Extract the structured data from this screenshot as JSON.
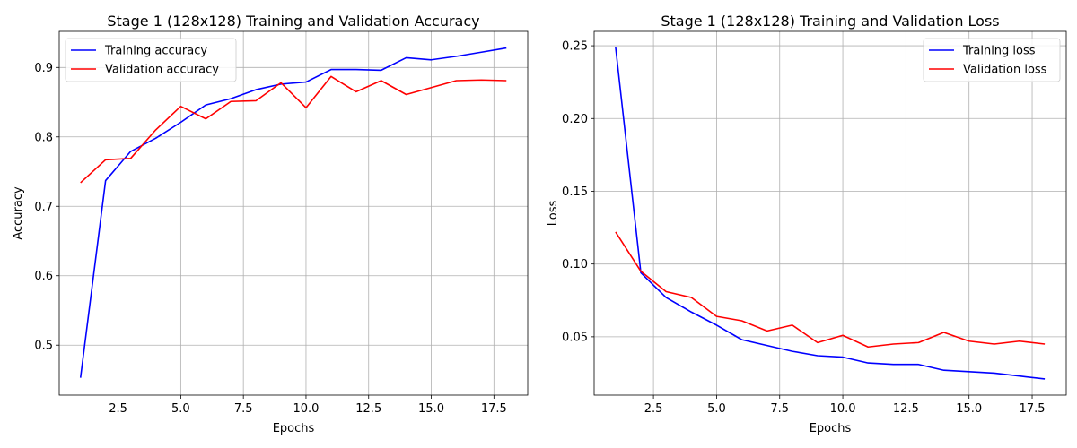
{
  "chart_data": [
    {
      "type": "line",
      "title": "Stage 1 (128x128) Training and Validation Accuracy",
      "xlabel": "Epochs",
      "ylabel": "Accuracy",
      "xlim": [
        0.15,
        18.85
      ],
      "ylim": [
        0.428,
        0.952
      ],
      "xticks": [
        2.5,
        5.0,
        7.5,
        10.0,
        12.5,
        15.0,
        17.5
      ],
      "yticks": [
        0.5,
        0.6,
        0.7,
        0.8,
        0.9
      ],
      "xtick_labels": [
        "2.5",
        "5.0",
        "7.5",
        "10.0",
        "12.5",
        "15.0",
        "17.5"
      ],
      "ytick_labels": [
        "0.5",
        "0.6",
        "0.7",
        "0.8",
        "0.9"
      ],
      "grid": true,
      "legend_position": "top-left",
      "x": [
        1,
        2,
        3,
        4,
        5,
        6,
        7,
        8,
        9,
        10,
        11,
        12,
        13,
        14,
        15,
        16,
        17,
        18
      ],
      "series": [
        {
          "name": "Training accuracy",
          "color": "#0000ff",
          "values": [
            0.453,
            0.737,
            0.779,
            0.798,
            0.821,
            0.846,
            0.855,
            0.868,
            0.876,
            0.879,
            0.897,
            0.897,
            0.896,
            0.914,
            0.911,
            0.916,
            0.922,
            0.928
          ]
        },
        {
          "name": "Validation accuracy",
          "color": "#ff0000",
          "values": [
            0.734,
            0.767,
            0.769,
            0.81,
            0.844,
            0.826,
            0.851,
            0.852,
            0.878,
            0.842,
            0.887,
            0.865,
            0.881,
            0.861,
            0.871,
            0.881,
            0.882,
            0.881
          ]
        }
      ]
    },
    {
      "type": "line",
      "title": "Stage 1 (128x128) Training and Validation Loss",
      "xlabel": "Epochs",
      "ylabel": "Loss",
      "xlim": [
        0.15,
        18.85
      ],
      "ylim": [
        0.0099,
        0.2599
      ],
      "xticks": [
        2.5,
        5.0,
        7.5,
        10.0,
        12.5,
        15.0,
        17.5
      ],
      "yticks": [
        0.05,
        0.1,
        0.15,
        0.2,
        0.25
      ],
      "xtick_labels": [
        "2.5",
        "5.0",
        "7.5",
        "10.0",
        "12.5",
        "15.0",
        "17.5"
      ],
      "ytick_labels": [
        "0.05",
        "0.10",
        "0.15",
        "0.20",
        "0.25"
      ],
      "grid": true,
      "legend_position": "top-right",
      "x": [
        1,
        2,
        3,
        4,
        5,
        6,
        7,
        8,
        9,
        10,
        11,
        12,
        13,
        14,
        15,
        16,
        17,
        18
      ],
      "series": [
        {
          "name": "Training loss",
          "color": "#0000ff",
          "values": [
            0.249,
            0.094,
            0.077,
            0.067,
            0.058,
            0.048,
            0.044,
            0.04,
            0.037,
            0.036,
            0.032,
            0.031,
            0.031,
            0.027,
            0.026,
            0.025,
            0.023,
            0.021
          ]
        },
        {
          "name": "Validation loss",
          "color": "#ff0000",
          "values": [
            0.122,
            0.095,
            0.081,
            0.077,
            0.064,
            0.061,
            0.054,
            0.058,
            0.046,
            0.051,
            0.043,
            0.045,
            0.046,
            0.053,
            0.047,
            0.045,
            0.047,
            0.045
          ]
        }
      ]
    }
  ]
}
